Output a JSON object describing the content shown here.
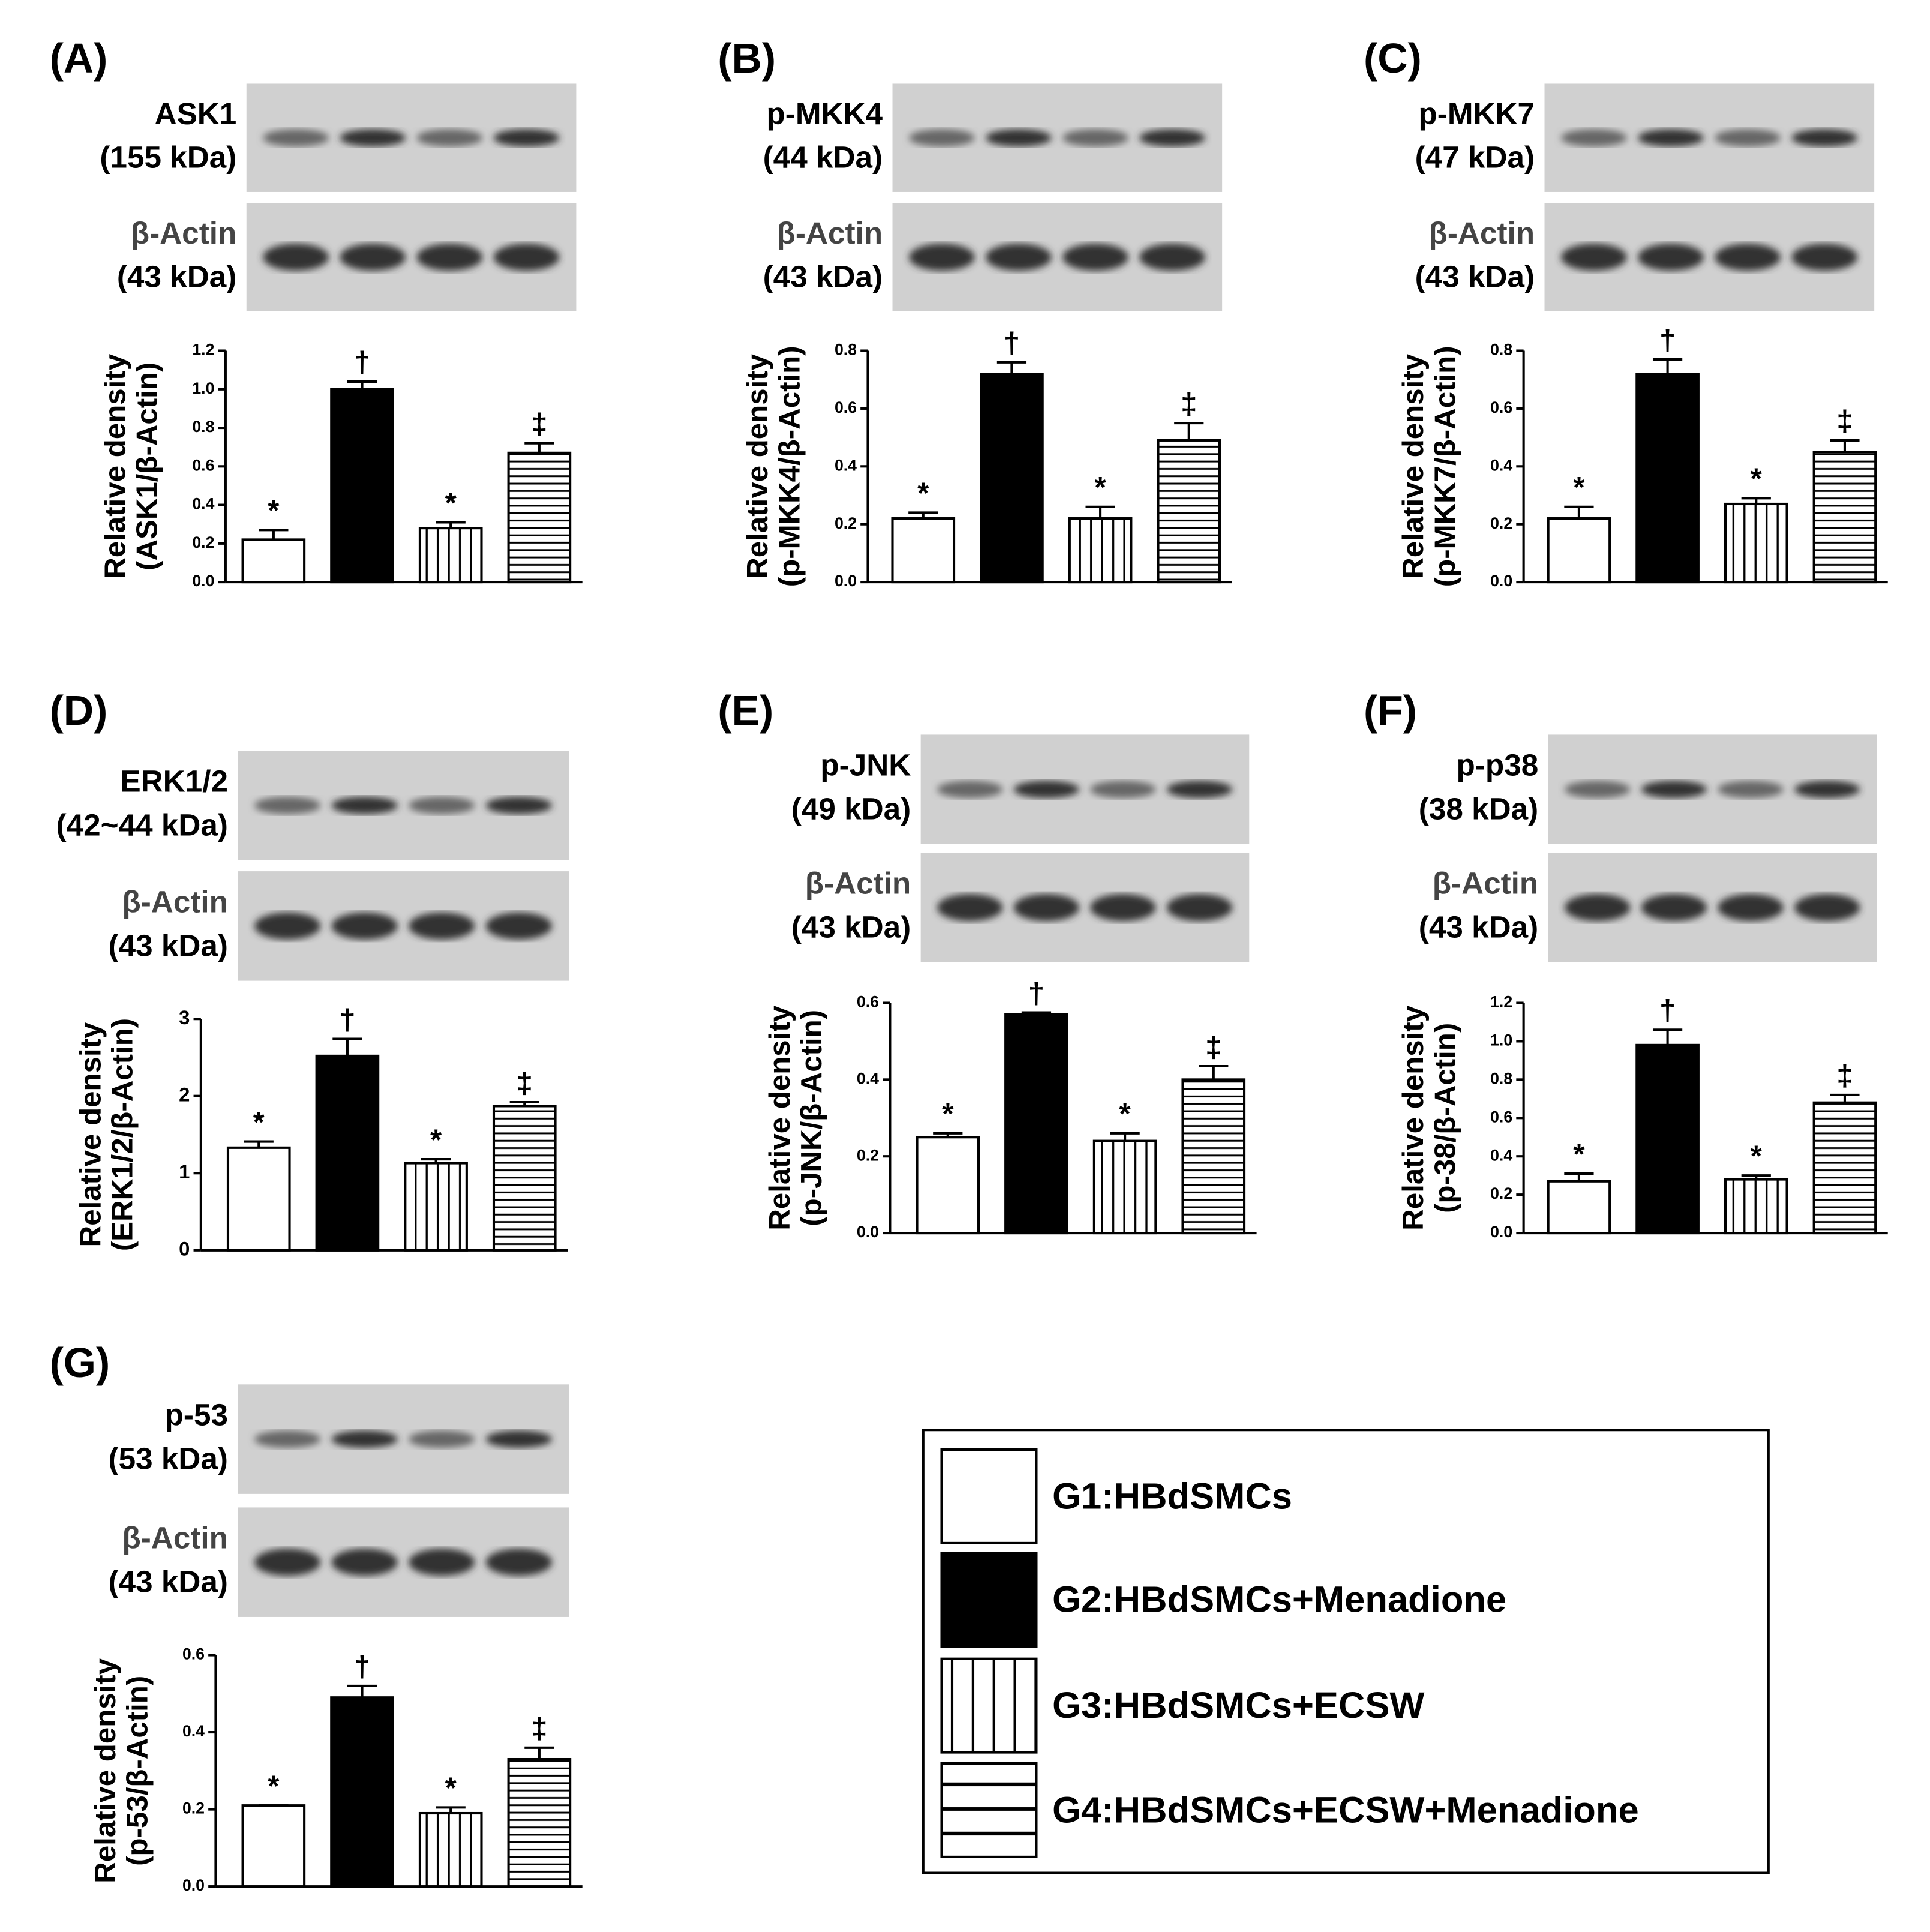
{
  "chart_data": [
    {
      "type": "bar",
      "panel": "(A)",
      "blot_labels": [
        [
          "ASK1",
          "(155 kDa)"
        ],
        [
          "β-Actin",
          "(43 kDa)"
        ]
      ],
      "ylabel": [
        "Relative density",
        "(ASK1/β-Actin)"
      ],
      "values": [
        0.22,
        1.0,
        0.28,
        0.67
      ],
      "errors": [
        0.05,
        0.04,
        0.03,
        0.05
      ],
      "annotations": [
        "*",
        "†",
        "*",
        "‡"
      ],
      "ylim": [
        0,
        1.2
      ],
      "yticks": [
        {
          "value": 0,
          "label": "0.0"
        },
        {
          "value": 0.2,
          "label": "0.2"
        },
        {
          "value": 0.4,
          "label": "0.4"
        },
        {
          "value": 0.6,
          "label": "0.6"
        },
        {
          "value": 0.8,
          "label": "0.8"
        },
        {
          "value": 1,
          "label": "1.0"
        },
        {
          "value": 1.2,
          "label": "1.2"
        }
      ]
    },
    {
      "type": "bar",
      "panel": "(B)",
      "blot_labels": [
        [
          "p-MKK4",
          "(44 kDa)"
        ],
        [
          "β-Actin",
          "(43 kDa)"
        ]
      ],
      "ylabel": [
        "Relative density",
        "(p-MKK4/β-Actin)"
      ],
      "values": [
        0.22,
        0.72,
        0.22,
        0.49
      ],
      "errors": [
        0.02,
        0.04,
        0.04,
        0.06
      ],
      "annotations": [
        "*",
        "†",
        "*",
        "‡"
      ],
      "ylim": [
        0,
        0.8
      ],
      "yticks": [
        {
          "value": 0,
          "label": "0.0"
        },
        {
          "value": 0.2,
          "label": "0.2"
        },
        {
          "value": 0.4,
          "label": "0.4"
        },
        {
          "value": 0.6,
          "label": "0.6"
        },
        {
          "value": 0.8,
          "label": "0.8"
        }
      ]
    },
    {
      "type": "bar",
      "panel": "(C)",
      "blot_labels": [
        [
          "p-MKK7",
          "(47 kDa)"
        ],
        [
          "β-Actin",
          "(43 kDa)"
        ]
      ],
      "ylabel": [
        "Relative density",
        "(p-MKK7/β-Actin)"
      ],
      "values": [
        0.22,
        0.72,
        0.27,
        0.45
      ],
      "errors": [
        0.04,
        0.05,
        0.02,
        0.04
      ],
      "annotations": [
        "*",
        "†",
        "*",
        "‡"
      ],
      "ylim": [
        0,
        0.8
      ],
      "yticks": [
        {
          "value": 0,
          "label": "0.0"
        },
        {
          "value": 0.2,
          "label": "0.2"
        },
        {
          "value": 0.4,
          "label": "0.4"
        },
        {
          "value": 0.6,
          "label": "0.6"
        },
        {
          "value": 0.8,
          "label": "0.8"
        }
      ]
    },
    {
      "type": "bar",
      "panel": "(D)",
      "blot_labels": [
        [
          "ERK1/2",
          "(42~44 kDa)"
        ],
        [
          "β-Actin",
          "(43 kDa)"
        ]
      ],
      "ylabel": [
        "Relative density",
        "(ERK1/2/β-Actin)"
      ],
      "values": [
        1.33,
        2.52,
        1.13,
        1.87
      ],
      "errors": [
        0.08,
        0.22,
        0.05,
        0.05
      ],
      "annotations": [
        "*",
        "†",
        "*",
        "‡"
      ],
      "ylim": [
        0,
        3
      ],
      "yticks": [
        0,
        1,
        2,
        3
      ]
    },
    {
      "type": "bar",
      "panel": "(E)",
      "blot_labels": [
        [
          "p-JNK",
          "(49 kDa)"
        ],
        [
          "β-Actin",
          "(43 kDa)"
        ]
      ],
      "ylabel": [
        "Relative density",
        "(p-JNK/β-Actin)"
      ],
      "values": [
        0.25,
        0.57,
        0.24,
        0.4
      ],
      "errors": [
        0.01,
        0.005,
        0.02,
        0.035
      ],
      "annotations": [
        "*",
        "†",
        "*",
        "‡"
      ],
      "ylim": [
        0,
        0.6
      ],
      "yticks": [
        {
          "value": 0,
          "label": "0.0"
        },
        {
          "value": 0.2,
          "label": "0.2"
        },
        {
          "value": 0.4,
          "label": "0.4"
        },
        {
          "value": 0.6,
          "label": "0.6"
        }
      ]
    },
    {
      "type": "bar",
      "panel": "(F)",
      "blot_labels": [
        [
          "p-p38",
          "(38 kDa)"
        ],
        [
          "β-Actin",
          "(43 kDa)"
        ]
      ],
      "ylabel": [
        "Relative density",
        "(p-38/β-Actin)"
      ],
      "values": [
        0.27,
        0.98,
        0.28,
        0.68
      ],
      "errors": [
        0.04,
        0.08,
        0.02,
        0.04
      ],
      "annotations": [
        "*",
        "†",
        "*",
        "‡"
      ],
      "ylim": [
        0,
        1.2
      ],
      "yticks": [
        {
          "value": 0,
          "label": "0.0"
        },
        {
          "value": 0.2,
          "label": "0.2"
        },
        {
          "value": 0.4,
          "label": "0.4"
        },
        {
          "value": 0.6,
          "label": "0.6"
        },
        {
          "value": 0.8,
          "label": "0.8"
        },
        {
          "value": 1,
          "label": "1.0"
        },
        {
          "value": 1.2,
          "label": "1.2"
        }
      ]
    },
    {
      "type": "bar",
      "panel": "(G)",
      "blot_labels": [
        [
          "p-53",
          "(53 kDa)"
        ],
        [
          "β-Actin",
          "(43 kDa)"
        ]
      ],
      "ylabel": [
        "Relative density",
        "(p-53/β-Actin)"
      ],
      "values": [
        0.21,
        0.49,
        0.19,
        0.33
      ],
      "errors": [
        0,
        0.03,
        0.015,
        0.03
      ],
      "annotations": [
        "*",
        "†",
        "*",
        "‡"
      ],
      "ylim": [
        0,
        0.6
      ],
      "yticks": [
        {
          "value": 0,
          "label": "0.0"
        },
        {
          "value": 0.2,
          "label": "0.2"
        },
        {
          "value": 0.4,
          "label": "0.4"
        },
        {
          "value": 0.6,
          "label": "0.6"
        }
      ]
    }
  ],
  "legend": {
    "items": [
      {
        "label": "G1:HBdSMCs",
        "fill": "white"
      },
      {
        "label": "G2:HBdSMCs+Menadione",
        "fill": "black"
      },
      {
        "label": "G3:HBdSMCs+ECSW",
        "fill": "vertical"
      },
      {
        "label": "G4:HBdSMCs+ECSW+Menadione",
        "fill": "horizontal"
      }
    ]
  }
}
